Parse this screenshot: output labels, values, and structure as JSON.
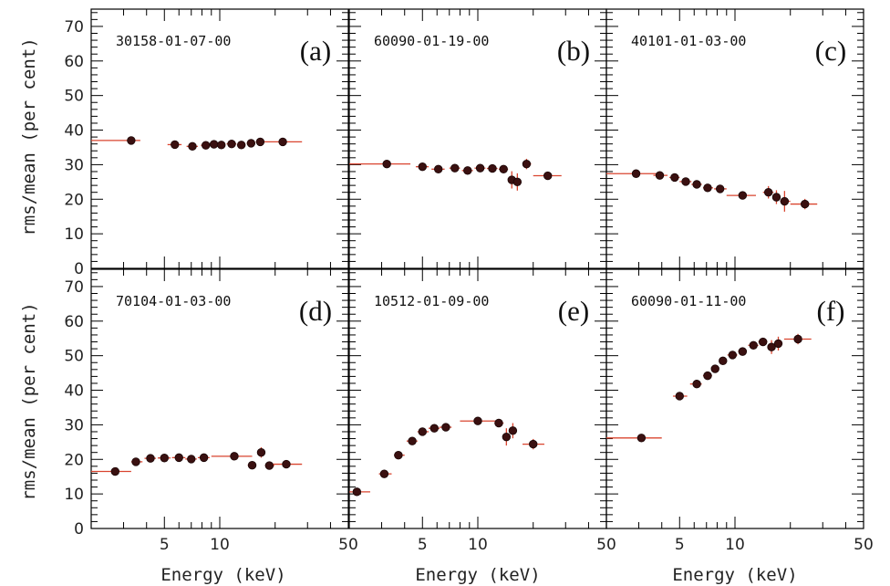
{
  "figure": {
    "ylabel": "rms/mean (per cent)",
    "xlabel": "Energy (keV)"
  },
  "chart_data": [
    {
      "type": "scatter",
      "panel": "(a)",
      "label": "30158-01-07-00",
      "xscale": "log",
      "xlim": [
        2,
        50
      ],
      "ylim": [
        0,
        75
      ],
      "xticks": [
        5,
        10,
        50
      ],
      "yticks": [
        0,
        10,
        20,
        30,
        40,
        50,
        60,
        70
      ],
      "points": [
        {
          "x": 3.3,
          "y": 37.0,
          "xlo": 2.0,
          "xhi": 3.7,
          "yerr": 0.6
        },
        {
          "x": 5.7,
          "y": 35.8,
          "xlo": 5.2,
          "xhi": 6.2,
          "yerr": 0.5
        },
        {
          "x": 7.1,
          "y": 35.3,
          "xlo": 6.6,
          "xhi": 7.6,
          "yerr": 0.5
        },
        {
          "x": 8.4,
          "y": 35.6,
          "xlo": 7.9,
          "xhi": 8.9,
          "yerr": 0.5
        },
        {
          "x": 9.3,
          "y": 35.9,
          "xlo": 8.9,
          "xhi": 9.7,
          "yerr": 0.5
        },
        {
          "x": 10.2,
          "y": 35.7,
          "xlo": 9.7,
          "xhi": 10.7,
          "yerr": 0.5
        },
        {
          "x": 11.6,
          "y": 36.0,
          "xlo": 10.9,
          "xhi": 12.3,
          "yerr": 0.5
        },
        {
          "x": 13.1,
          "y": 35.7,
          "xlo": 12.4,
          "xhi": 13.8,
          "yerr": 0.5
        },
        {
          "x": 14.8,
          "y": 36.2,
          "xlo": 14.0,
          "xhi": 15.6,
          "yerr": 0.5
        },
        {
          "x": 16.6,
          "y": 36.6,
          "xlo": 15.7,
          "xhi": 17.5,
          "yerr": 0.6
        },
        {
          "x": 22.0,
          "y": 36.6,
          "xlo": 17.5,
          "xhi": 28.0,
          "yerr": 0.6
        }
      ]
    },
    {
      "type": "scatter",
      "panel": "(b)",
      "label": "60090-01-19-00",
      "xscale": "log",
      "xlim": [
        2,
        50
      ],
      "ylim": [
        0,
        75
      ],
      "xticks": [
        5,
        10,
        50
      ],
      "yticks": [
        0,
        10,
        20,
        30,
        40,
        50,
        60,
        70
      ],
      "points": [
        {
          "x": 3.2,
          "y": 30.2,
          "xlo": 2.0,
          "xhi": 4.3,
          "yerr": 0.6
        },
        {
          "x": 5.0,
          "y": 29.4,
          "xlo": 4.6,
          "xhi": 5.4,
          "yerr": 0.6
        },
        {
          "x": 6.1,
          "y": 28.7,
          "xlo": 5.6,
          "xhi": 6.6,
          "yerr": 0.6
        },
        {
          "x": 7.5,
          "y": 29.0,
          "xlo": 7.0,
          "xhi": 8.0,
          "yerr": 0.6
        },
        {
          "x": 8.8,
          "y": 28.3,
          "xlo": 8.2,
          "xhi": 9.4,
          "yerr": 0.7
        },
        {
          "x": 10.3,
          "y": 29.0,
          "xlo": 9.6,
          "xhi": 11.0,
          "yerr": 0.7
        },
        {
          "x": 12.0,
          "y": 28.9,
          "xlo": 11.2,
          "xhi": 12.8,
          "yerr": 0.8
        },
        {
          "x": 13.8,
          "y": 28.7,
          "xlo": 13.0,
          "xhi": 14.6,
          "yerr": 1.0
        },
        {
          "x": 15.3,
          "y": 25.6,
          "xlo": 14.7,
          "xhi": 16.0,
          "yerr": 2.5
        },
        {
          "x": 16.4,
          "y": 25.0,
          "xlo": 16.0,
          "xhi": 17.0,
          "yerr": 2.5
        },
        {
          "x": 18.4,
          "y": 30.2,
          "xlo": 17.5,
          "xhi": 19.5,
          "yerr": 1.5
        },
        {
          "x": 24.0,
          "y": 26.8,
          "xlo": 20.0,
          "xhi": 28.5,
          "yerr": 1.0
        }
      ]
    },
    {
      "type": "scatter",
      "panel": "(c)",
      "label": "40101-01-03-00",
      "xscale": "log",
      "xlim": [
        2,
        50
      ],
      "ylim": [
        0,
        75
      ],
      "xticks": [
        5,
        10,
        50
      ],
      "yticks": [
        0,
        10,
        20,
        30,
        40,
        50,
        60,
        70
      ],
      "points": [
        {
          "x": 2.9,
          "y": 27.4,
          "xlo": 2.0,
          "xhi": 3.8,
          "yerr": 0.6
        },
        {
          "x": 3.9,
          "y": 26.9,
          "xlo": 3.6,
          "xhi": 4.3,
          "yerr": 0.6
        },
        {
          "x": 4.7,
          "y": 26.3,
          "xlo": 4.4,
          "xhi": 5.0,
          "yerr": 0.6
        },
        {
          "x": 5.4,
          "y": 25.1,
          "xlo": 5.0,
          "xhi": 5.8,
          "yerr": 0.6
        },
        {
          "x": 6.2,
          "y": 24.3,
          "xlo": 5.8,
          "xhi": 6.6,
          "yerr": 0.6
        },
        {
          "x": 7.1,
          "y": 23.3,
          "xlo": 6.7,
          "xhi": 7.6,
          "yerr": 0.6
        },
        {
          "x": 8.3,
          "y": 23.0,
          "xlo": 7.7,
          "xhi": 9.0,
          "yerr": 0.7
        },
        {
          "x": 11.0,
          "y": 21.1,
          "xlo": 9.0,
          "xhi": 13.0,
          "yerr": 0.8
        },
        {
          "x": 15.2,
          "y": 22.0,
          "xlo": 14.2,
          "xhi": 16.2,
          "yerr": 1.8
        },
        {
          "x": 16.8,
          "y": 20.6,
          "xlo": 16.0,
          "xhi": 17.6,
          "yerr": 2.0
        },
        {
          "x": 18.6,
          "y": 19.4,
          "xlo": 17.6,
          "xhi": 20.0,
          "yerr": 3.0
        },
        {
          "x": 24.0,
          "y": 18.6,
          "xlo": 20.0,
          "xhi": 28.0,
          "yerr": 1.5
        }
      ]
    },
    {
      "type": "scatter",
      "panel": "(d)",
      "label": "70104-01-03-00",
      "xscale": "log",
      "xlim": [
        2,
        50
      ],
      "ylim": [
        0,
        75
      ],
      "xticks": [
        5,
        10,
        50
      ],
      "yticks": [
        0,
        10,
        20,
        30,
        40,
        50,
        60,
        70
      ],
      "points": [
        {
          "x": 2.7,
          "y": 16.5,
          "xlo": 2.0,
          "xhi": 3.3,
          "yerr": 0.6
        },
        {
          "x": 3.5,
          "y": 19.3,
          "xlo": 3.3,
          "xhi": 3.8,
          "yerr": 0.6
        },
        {
          "x": 4.2,
          "y": 20.3,
          "xlo": 3.9,
          "xhi": 4.5,
          "yerr": 0.6
        },
        {
          "x": 5.0,
          "y": 20.4,
          "xlo": 4.6,
          "xhi": 5.4,
          "yerr": 0.6
        },
        {
          "x": 6.0,
          "y": 20.5,
          "xlo": 5.5,
          "xhi": 6.5,
          "yerr": 0.6
        },
        {
          "x": 7.0,
          "y": 20.1,
          "xlo": 6.5,
          "xhi": 7.5,
          "yerr": 0.6
        },
        {
          "x": 8.2,
          "y": 20.5,
          "xlo": 7.6,
          "xhi": 8.8,
          "yerr": 0.6
        },
        {
          "x": 12.0,
          "y": 20.9,
          "xlo": 9.0,
          "xhi": 15.0,
          "yerr": 0.8
        },
        {
          "x": 15.0,
          "y": 18.3,
          "xlo": 14.2,
          "xhi": 15.8,
          "yerr": 1.0
        },
        {
          "x": 16.8,
          "y": 22.0,
          "xlo": 16.0,
          "xhi": 17.6,
          "yerr": 1.5
        },
        {
          "x": 18.6,
          "y": 18.2,
          "xlo": 17.6,
          "xhi": 19.8,
          "yerr": 1.0
        },
        {
          "x": 23.0,
          "y": 18.6,
          "xlo": 19.5,
          "xhi": 28.0,
          "yerr": 0.8
        }
      ]
    },
    {
      "type": "scatter",
      "panel": "(e)",
      "label": "10512-01-09-00",
      "xscale": "log",
      "xlim": [
        2,
        50
      ],
      "ylim": [
        0,
        75
      ],
      "xticks": [
        5,
        10,
        50
      ],
      "yticks": [
        0,
        10,
        20,
        30,
        40,
        50,
        60,
        70
      ],
      "points": [
        {
          "x": 2.2,
          "y": 10.6,
          "xlo": 2.0,
          "xhi": 2.6,
          "yerr": 0.5
        },
        {
          "x": 3.1,
          "y": 15.8,
          "xlo": 2.9,
          "xhi": 3.4,
          "yerr": 0.6
        },
        {
          "x": 3.7,
          "y": 21.2,
          "xlo": 3.5,
          "xhi": 4.0,
          "yerr": 0.6
        },
        {
          "x": 4.4,
          "y": 25.3,
          "xlo": 4.1,
          "xhi": 4.7,
          "yerr": 0.6
        },
        {
          "x": 5.0,
          "y": 28.0,
          "xlo": 4.7,
          "xhi": 5.4,
          "yerr": 0.6
        },
        {
          "x": 5.8,
          "y": 29.0,
          "xlo": 5.4,
          "xhi": 6.2,
          "yerr": 0.6
        },
        {
          "x": 6.7,
          "y": 29.3,
          "xlo": 6.2,
          "xhi": 7.2,
          "yerr": 0.6
        },
        {
          "x": 10.0,
          "y": 31.1,
          "xlo": 8.0,
          "xhi": 12.5,
          "yerr": 0.7
        },
        {
          "x": 13.0,
          "y": 30.5,
          "xlo": 12.3,
          "xhi": 13.8,
          "yerr": 1.2
        },
        {
          "x": 14.3,
          "y": 26.5,
          "xlo": 13.6,
          "xhi": 15.0,
          "yerr": 2.5
        },
        {
          "x": 15.5,
          "y": 28.3,
          "xlo": 14.9,
          "xhi": 16.3,
          "yerr": 2.2
        },
        {
          "x": 20.0,
          "y": 24.4,
          "xlo": 17.5,
          "xhi": 23.0,
          "yerr": 1.5
        }
      ]
    },
    {
      "type": "scatter",
      "panel": "(f)",
      "label": "60090-01-11-00",
      "xscale": "log",
      "xlim": [
        2,
        50
      ],
      "ylim": [
        0,
        75
      ],
      "xticks": [
        5,
        10,
        50
      ],
      "yticks": [
        0,
        10,
        20,
        30,
        40,
        50,
        60,
        70
      ],
      "points": [
        {
          "x": 3.1,
          "y": 26.2,
          "xlo": 2.0,
          "xhi": 4.0,
          "yerr": 0.6
        },
        {
          "x": 5.0,
          "y": 38.3,
          "xlo": 4.6,
          "xhi": 5.5,
          "yerr": 0.6
        },
        {
          "x": 6.2,
          "y": 41.8,
          "xlo": 5.7,
          "xhi": 6.6,
          "yerr": 0.6
        },
        {
          "x": 7.1,
          "y": 44.2,
          "xlo": 6.7,
          "xhi": 7.5,
          "yerr": 0.6
        },
        {
          "x": 7.8,
          "y": 46.2,
          "xlo": 7.4,
          "xhi": 8.2,
          "yerr": 0.6
        },
        {
          "x": 8.6,
          "y": 48.5,
          "xlo": 8.2,
          "xhi": 9.0,
          "yerr": 0.7
        },
        {
          "x": 9.7,
          "y": 50.2,
          "xlo": 9.1,
          "xhi": 10.3,
          "yerr": 0.7
        },
        {
          "x": 11.0,
          "y": 51.2,
          "xlo": 10.4,
          "xhi": 11.6,
          "yerr": 0.8
        },
        {
          "x": 12.6,
          "y": 53.0,
          "xlo": 11.8,
          "xhi": 13.4,
          "yerr": 1.0
        },
        {
          "x": 14.2,
          "y": 54.0,
          "xlo": 13.4,
          "xhi": 15.0,
          "yerr": 1.2
        },
        {
          "x": 15.8,
          "y": 52.5,
          "xlo": 15.0,
          "xhi": 16.6,
          "yerr": 2.0
        },
        {
          "x": 17.2,
          "y": 53.5,
          "xlo": 16.6,
          "xhi": 18.0,
          "yerr": 2.0
        },
        {
          "x": 22.0,
          "y": 54.8,
          "xlo": 18.5,
          "xhi": 26.0,
          "yerr": 1.5
        }
      ]
    }
  ]
}
